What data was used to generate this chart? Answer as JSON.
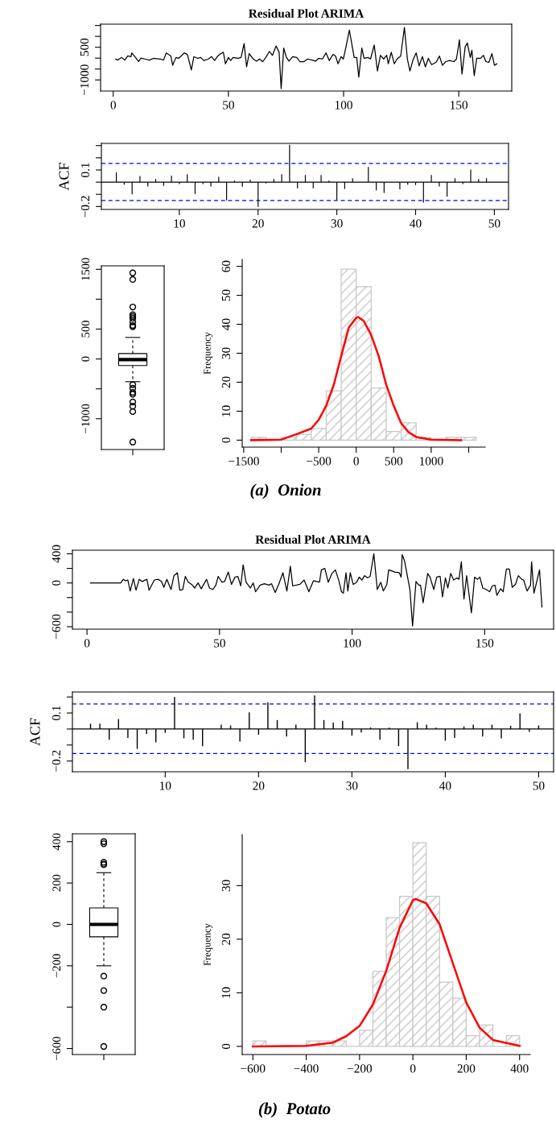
{
  "chart_data": [
    {
      "type": "line",
      "title": "Residual Plot ARIMA",
      "xlim": [
        -5.5,
        173
      ],
      "xticks": [
        0,
        50,
        100,
        150
      ],
      "ylim": [
        -1510,
        1560
      ],
      "yticks": [
        {
          "value": 1500,
          "label": null
        },
        {
          "value": 1000,
          "label": null
        },
        500,
        {
          "value": 0,
          "label": null
        },
        {
          "value": -500,
          "label": null
        },
        -1000
      ],
      "series": [
        {
          "color": "#000000",
          "x": [
            1,
            2,
            3.6,
            5,
            6.3,
            7.7,
            8,
            9.7,
            11,
            12,
            13.7,
            15.7,
            17.4,
            20.5,
            21.8,
            23,
            25,
            25.8,
            27.2,
            28.3,
            29.5,
            30.8,
            32.2,
            33.9,
            35,
            36.6,
            38,
            39.3,
            41.3,
            42.7,
            44,
            45.4,
            46.7,
            47.8,
            48.7,
            50,
            51,
            52,
            54,
            55.5,
            56.8,
            57.9,
            59,
            60.8,
            62.2,
            63.5,
            64.9,
            66.2,
            67.8,
            69.1,
            70.7,
            72,
            72.9,
            74,
            75.2,
            76.3,
            77.9,
            79.7,
            81,
            82.8,
            84.4,
            86.4,
            87.8,
            89.1,
            90.8,
            92.4,
            93.8,
            95.4,
            96.5,
            97.6,
            98.9,
            99.9,
            101.2,
            102.5,
            104.6,
            105.7,
            106.6,
            107.9,
            108.9,
            110.6,
            111.7,
            113.3,
            114.7,
            116,
            117.4,
            118.7,
            119.4,
            120.7,
            122,
            123.2,
            124.8,
            126.4,
            127.7,
            128.8,
            130.1,
            131.5,
            132.8,
            134.2,
            135.5,
            136.8,
            138.2,
            140.2,
            141.6,
            142.9,
            144.3,
            146,
            147.9,
            149,
            150.3,
            151.4,
            152.8,
            153.7,
            155,
            155.7,
            156.7,
            157.8,
            159.5,
            160.7,
            161.8,
            163.1,
            164.4,
            165.5,
            166.5
          ],
          "values": [
            -40,
            -90,
            30,
            -90,
            100,
            70,
            240,
            30,
            -160,
            0,
            -40,
            -90,
            -10,
            -40,
            -90,
            240,
            100,
            -330,
            30,
            -10,
            100,
            240,
            170,
            -540,
            70,
            -10,
            30,
            -110,
            -40,
            70,
            -110,
            100,
            210,
            270,
            -260,
            30,
            -110,
            30,
            -10,
            30,
            670,
            -400,
            210,
            -40,
            -140,
            -40,
            -160,
            30,
            310,
            130,
            560,
            270,
            -1400,
            460,
            30,
            -140,
            70,
            30,
            -160,
            -160,
            -40,
            -90,
            -140,
            -10,
            -40,
            240,
            -110,
            170,
            100,
            -260,
            70,
            -40,
            600,
            1290,
            30,
            30,
            -870,
            460,
            -10,
            30,
            -40,
            600,
            -590,
            130,
            -40,
            130,
            -260,
            270,
            -260,
            -40,
            100,
            1410,
            -40,
            -590,
            -90,
            240,
            -360,
            70,
            -400,
            -10,
            -300,
            -190,
            100,
            -330,
            -160,
            -110,
            -160,
            -40,
            840,
            -730,
            530,
            700,
            30,
            360,
            -800,
            -10,
            -10,
            130,
            -160,
            -190,
            210,
            -330,
            -260
          ]
        }
      ]
    },
    {
      "type": "bar",
      "ylabel": "ACF",
      "color": "#000000",
      "xlim": [
        0.1,
        51.8
      ],
      "xticks": [
        10,
        20,
        30,
        40,
        50
      ],
      "ylim": [
        -0.224,
        0.318
      ],
      "yticks": [
        {
          "value": 0.3,
          "label": null
        },
        {
          "value": 0.2,
          "label": null
        },
        0.1,
        {
          "value": 0,
          "label": null
        },
        {
          "value": -0.1,
          "label": null
        },
        -0.2
      ],
      "x": [
        1,
        2,
        3,
        4,
        5,
        6,
        7,
        8,
        9,
        10,
        11,
        12,
        13,
        14,
        15,
        16,
        17,
        18,
        19,
        20,
        21,
        22,
        23,
        24,
        25,
        26,
        27,
        28,
        29,
        30,
        31,
        32,
        33,
        34,
        35,
        36,
        37,
        38,
        39,
        40,
        41,
        42,
        43,
        44,
        45,
        46,
        47,
        48,
        49
      ],
      "values": [
        0,
        0.08,
        -0.02,
        -0.1,
        0.05,
        -0.035,
        0.026,
        -0.03,
        0.053,
        -0.015,
        0.065,
        -0.097,
        -0.015,
        -0.035,
        0.044,
        -0.15,
        0.012,
        -0.038,
        0.02,
        -0.203,
        -0.01,
        0.026,
        0.065,
        0.306,
        -0.05,
        0.059,
        -0.05,
        0.059,
        0.012,
        -0.147,
        -0.056,
        0.032,
        null,
        0.124,
        -0.068,
        -0.088,
        null,
        -0.059,
        -0.02,
        -0.024,
        -0.168,
        0.059,
        -0.035,
        -0.118,
        0.032,
        -0.015,
        0.103,
        0.026,
        0.032
      ],
      "ref_lines": [
        {
          "axis": "y",
          "value": 0,
          "color": "#000000",
          "line_style": "solid"
        },
        {
          "axis": "y",
          "value": 0.153,
          "color": "#0000ff",
          "line_style": "dashed"
        },
        {
          "axis": "y",
          "value": -0.15,
          "color": "#0000ff",
          "line_style": "dashed"
        }
      ]
    },
    {
      "type": "box",
      "categories": [
        null
      ],
      "ylim": [
        -1515,
        1558
      ],
      "yticks": [
        1500,
        {
          "value": 1000,
          "label": null
        },
        500,
        0,
        {
          "value": -500,
          "label": null
        },
        -1000
      ],
      "boxes": [
        {
          "low": -380,
          "q1": -110,
          "median": -10,
          "q3": 90,
          "high": 360,
          "outliers": [
            1440,
            1330,
            870,
            740,
            710,
            680,
            620,
            560,
            540,
            -430,
            -490,
            -560,
            -590,
            -720,
            -790,
            -880,
            -1390
          ]
        }
      ]
    },
    {
      "type": "histogram",
      "ylabel": "Frequency",
      "xlim": [
        -1520,
        1720
      ],
      "xticks": [
        -1500,
        {
          "value": -1000,
          "label": null
        },
        -500,
        0,
        500,
        1000,
        {
          "value": 1500,
          "label": null
        }
      ],
      "ylim": [
        -2.4,
        62.4
      ],
      "yticks": [
        0,
        10,
        20,
        30,
        40,
        50,
        60
      ],
      "series": [
        {
          "type": "histogram",
          "color": "#c8c8c8",
          "bins": [
            -1400,
            -1200,
            -1000,
            -800,
            -600,
            -400,
            -200,
            0,
            200,
            400,
            600,
            800,
            1000,
            1200,
            1400,
            1600
          ],
          "values": [
            1,
            0,
            1,
            2,
            4,
            17,
            59,
            53,
            18,
            3,
            6,
            1,
            0,
            1,
            1
          ]
        },
        {
          "type": "line",
          "color": "#ff0000",
          "x": [
            -1400,
            -1000,
            -800,
            -600,
            -500,
            -400,
            -300,
            -200,
            -100,
            0,
            25,
            100,
            200,
            300,
            400,
            500,
            600,
            700,
            800,
            1000,
            1400
          ],
          "values": [
            0,
            0.2,
            2,
            4,
            7,
            11.9,
            19,
            29,
            38.8,
            42.2,
            42.5,
            41.2,
            36.3,
            29,
            19.2,
            11.9,
            5.8,
            2.7,
            1.1,
            0.2,
            0
          ]
        }
      ],
      "annotations": [
        "(a)  Onion"
      ]
    },
    {
      "type": "line",
      "title": "Residual Plot ARIMA",
      "xlim": [
        -5.5,
        176
      ],
      "xticks": [
        0,
        50,
        100,
        150
      ],
      "ylim": [
        -634,
        449
      ],
      "yticks": [
        400,
        {
          "value": 200,
          "label": null
        },
        0,
        {
          "value": -200,
          "label": null
        },
        {
          "value": -400,
          "label": null
        },
        -600
      ],
      "series": [
        {
          "color": "#000000",
          "x": [
            1.3,
            12.7,
            13.7,
            14.5,
            15.4,
            16.3,
            17.5,
            18.5,
            19.7,
            20.7,
            22.6,
            23.4,
            25.4,
            26.8,
            28.1,
            29,
            30.1,
            31.7,
            32.8,
            34.1,
            35,
            36.1,
            37.1,
            38.2,
            39.5,
            40.6,
            41.9,
            43.1,
            45.1,
            46.2,
            47.5,
            48.6,
            49.5,
            50.9,
            51.9,
            53.3,
            54.5,
            55.8,
            56.9,
            58,
            58.9,
            60,
            61.6,
            62.7,
            63.6,
            65.3,
            66.9,
            68.7,
            69.6,
            71,
            72.3,
            73.9,
            75.4,
            76.7,
            77.6,
            80.3,
            81.9,
            83.7,
            85.4,
            87.7,
            88.4,
            89.7,
            91,
            92.4,
            93.7,
            95,
            96,
            96.7,
            97.7,
            98.4,
            99.3,
            100.4,
            101.7,
            102.7,
            103.7,
            104.7,
            105.8,
            106.8,
            108.2,
            109.5,
            110.8,
            111.8,
            113.1,
            113.8,
            116.1,
            117.8,
            118.5,
            118.9,
            119.8,
            121.8,
            122.8,
            124.1,
            125.2,
            125.8,
            126.8,
            128.5,
            129.4,
            130.8,
            131.9,
            133.2,
            134.1,
            135.2,
            136.1,
            137.2,
            138.3,
            139.6,
            140.3,
            141.2,
            142.2,
            143.2,
            145,
            146.2,
            147.3,
            148.2,
            149.3,
            150.6,
            151.9,
            152.9,
            153.9,
            154.6,
            156,
            157,
            158.2,
            159.3,
            160.4,
            161.6,
            162.7,
            164,
            164.7,
            166,
            167.3,
            167.7,
            168.6,
            170.7,
            171.6
          ],
          "values": [
            0,
            0,
            50,
            30,
            40,
            -110,
            60,
            -100,
            50,
            20,
            50,
            -100,
            40,
            50,
            20,
            -60,
            50,
            -90,
            100,
            140,
            -100,
            -90,
            90,
            10,
            -20,
            -70,
            0,
            -80,
            50,
            -70,
            -90,
            -30,
            90,
            10,
            20,
            150,
            -20,
            80,
            90,
            -40,
            250,
            10,
            -70,
            0,
            -120,
            -30,
            -10,
            -30,
            -10,
            -130,
            -20,
            140,
            -110,
            230,
            -40,
            -20,
            40,
            -120,
            30,
            10,
            180,
            200,
            10,
            130,
            180,
            30,
            -120,
            -140,
            140,
            -110,
            140,
            -20,
            10,
            80,
            40,
            100,
            70,
            90,
            400,
            -90,
            10,
            -110,
            -20,
            180,
            150,
            140,
            80,
            390,
            300,
            -90,
            -590,
            20,
            -30,
            -30,
            -270,
            130,
            80,
            -90,
            80,
            90,
            -190,
            70,
            -70,
            130,
            40,
            70,
            50,
            290,
            -220,
            100,
            -410,
            80,
            50,
            80,
            -70,
            -90,
            -120,
            -40,
            -30,
            -170,
            -80,
            -120,
            190,
            190,
            -60,
            -20,
            100,
            50,
            40,
            -110,
            -30,
            290,
            -140,
            180,
            -330
          ]
        }
      ]
    },
    {
      "type": "bar",
      "ylabel": "ACF",
      "color": "#000000",
      "xlim": [
        0.06,
        51.6
      ],
      "xticks": [
        10,
        20,
        30,
        40,
        50
      ],
      "ylim": [
        -0.267,
        0.231
      ],
      "yticks": [
        {
          "value": 0.2,
          "label": null
        },
        0.1,
        {
          "value": 0,
          "label": null
        },
        {
          "value": -0.1,
          "label": null
        },
        -0.2
      ],
      "x": [
        1,
        2,
        3,
        4,
        5,
        6,
        7,
        8,
        9,
        10,
        11,
        12,
        13,
        14,
        15,
        16,
        17,
        18,
        19,
        20,
        21,
        22,
        23,
        24,
        25,
        26,
        27,
        28,
        29,
        30,
        31,
        32,
        33,
        34,
        35,
        36,
        37,
        38,
        39,
        40,
        41,
        42,
        43,
        44,
        45,
        46,
        47,
        48,
        49,
        50
      ],
      "values": [
        0,
        0.033,
        0.033,
        -0.067,
        0.062,
        -0.056,
        -0.124,
        -0.031,
        -0.084,
        -0.024,
        0.2,
        -0.058,
        -0.067,
        -0.107,
        null,
        0.027,
        0.022,
        -0.078,
        0.104,
        -0.036,
        0.167,
        0.056,
        -0.047,
        0.027,
        -0.207,
        0.209,
        0.056,
        0.04,
        0.051,
        -0.042,
        -0.022,
        0.009,
        -0.067,
        0.009,
        -0.107,
        -0.251,
        0.042,
        0.027,
        0.009,
        -0.073,
        -0.056,
        0.016,
        0.027,
        -0.047,
        0.027,
        -0.058,
        0.02,
        0.098,
        -0.018,
        0.022
      ],
      "ref_lines": [
        {
          "axis": "y",
          "value": 0,
          "color": "#000000",
          "line_style": "solid"
        },
        {
          "axis": "y",
          "value": 0.156,
          "color": "#0000ff",
          "line_style": "dashed"
        },
        {
          "axis": "y",
          "value": -0.153,
          "color": "#0000ff",
          "line_style": "dashed"
        }
      ]
    },
    {
      "type": "box",
      "categories": [
        null
      ],
      "ylim": [
        -629,
        438
      ],
      "yticks": [
        400,
        200,
        0,
        -200,
        {
          "value": -400,
          "label": null
        },
        -600
      ],
      "boxes": [
        {
          "low": -200,
          "q1": -60,
          "median": 0,
          "q3": 80,
          "high": 250,
          "outliers": [
            400,
            390,
            300,
            290,
            290,
            -250,
            -320,
            -400,
            -590
          ]
        }
      ]
    },
    {
      "type": "histogram",
      "ylabel": "Frequency",
      "xlim": [
        -640,
        440
      ],
      "xticks": [
        -600,
        -400,
        -200,
        0,
        200,
        400
      ],
      "ylim": [
        -1.52,
        39.52
      ],
      "yticks": [
        0,
        10,
        20,
        30
      ],
      "series": [
        {
          "type": "histogram",
          "color": "#c8c8c8",
          "bins": [
            -600,
            -550,
            -500,
            -450,
            -400,
            -350,
            -300,
            -250,
            -200,
            -150,
            -100,
            -50,
            0,
            50,
            100,
            150,
            200,
            250,
            300,
            350,
            400
          ],
          "values": [
            1,
            0,
            0,
            0,
            1,
            1,
            1,
            0,
            3,
            14,
            24,
            28,
            38,
            28,
            12,
            9,
            2,
            4,
            0,
            2
          ]
        },
        {
          "type": "line",
          "color": "#ff0000",
          "x": [
            -600,
            -400,
            -300,
            -250,
            -200,
            -150,
            -100,
            -50,
            0,
            10,
            50,
            100,
            150,
            200,
            250,
            300,
            400
          ],
          "values": [
            0,
            0.1,
            0.7,
            1.9,
            3.8,
            7.8,
            14.1,
            22.1,
            27.3,
            27.5,
            26.7,
            22.8,
            15.5,
            8.2,
            3.5,
            1.2,
            0.1
          ]
        }
      ],
      "annotations": [
        "(b)  Potato"
      ]
    }
  ]
}
